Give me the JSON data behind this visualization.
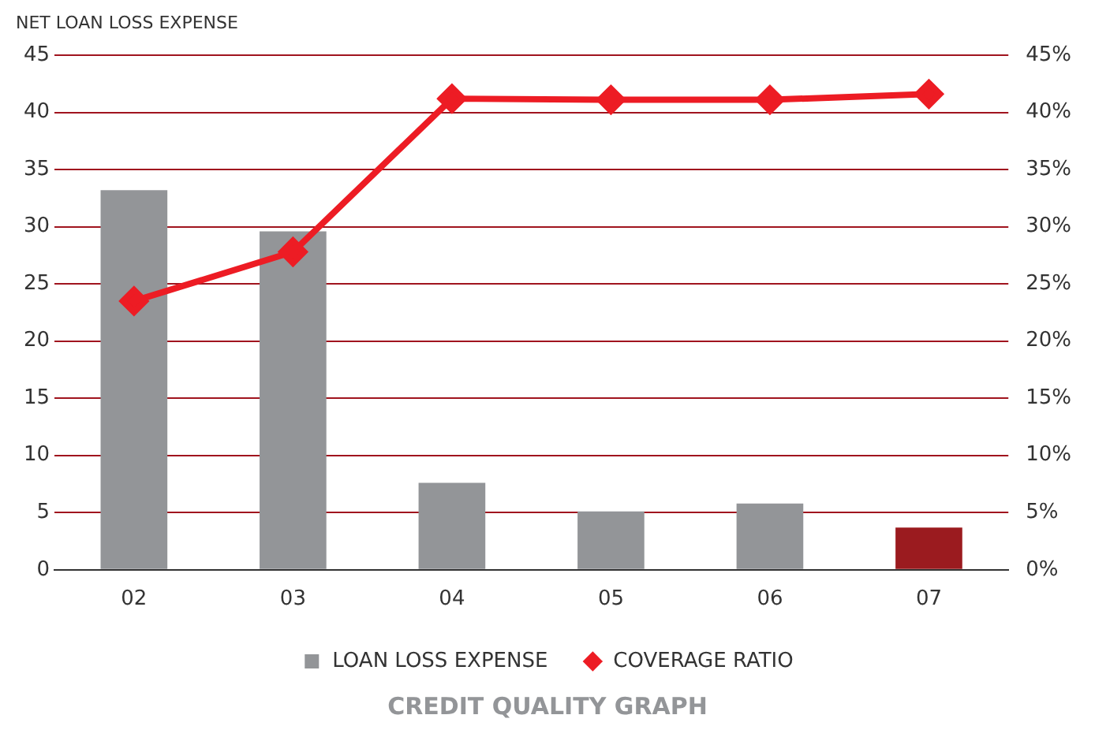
{
  "chart_data": {
    "type": "bar",
    "title": "CREDIT QUALITY GRAPH",
    "ylabel": "NET LOAN LOSS EXPENSE",
    "categories": [
      "02",
      "03",
      "04",
      "05",
      "06",
      "07"
    ],
    "series": [
      {
        "name": "LOAN LOSS EXPENSE",
        "color": "#939598",
        "colors": [
          "#939598",
          "#939598",
          "#939598",
          "#939598",
          "#939598",
          "#9b1b1f"
        ],
        "values": [
          33.2,
          29.6,
          7.6,
          5.1,
          5.8,
          3.7
        ]
      },
      {
        "name": "COVERAGE RATIO",
        "type": "line",
        "axis": "y2",
        "color": "#ed1c24",
        "marker": "diamond",
        "values": [
          23.5,
          27.8,
          41.2,
          41.1,
          41.1,
          41.6
        ]
      }
    ],
    "ylim": [
      0,
      45
    ],
    "yticks": [
      0,
      5,
      10,
      15,
      20,
      25,
      30,
      35,
      40,
      45
    ],
    "y2lim": [
      0,
      45
    ],
    "y2ticks": [
      {
        "value": 0,
        "label": "0%"
      },
      {
        "value": 5,
        "label": "5%"
      },
      {
        "value": 10,
        "label": "10%"
      },
      {
        "value": 15,
        "label": "15%"
      },
      {
        "value": 20,
        "label": "20%"
      },
      {
        "value": 25,
        "label": "25%"
      },
      {
        "value": 30,
        "label": "30%"
      },
      {
        "value": 35,
        "label": "35%"
      },
      {
        "value": 40,
        "label": "40%"
      },
      {
        "value": 45,
        "label": "45%"
      }
    ],
    "grid": "y",
    "legend": "bottom"
  }
}
